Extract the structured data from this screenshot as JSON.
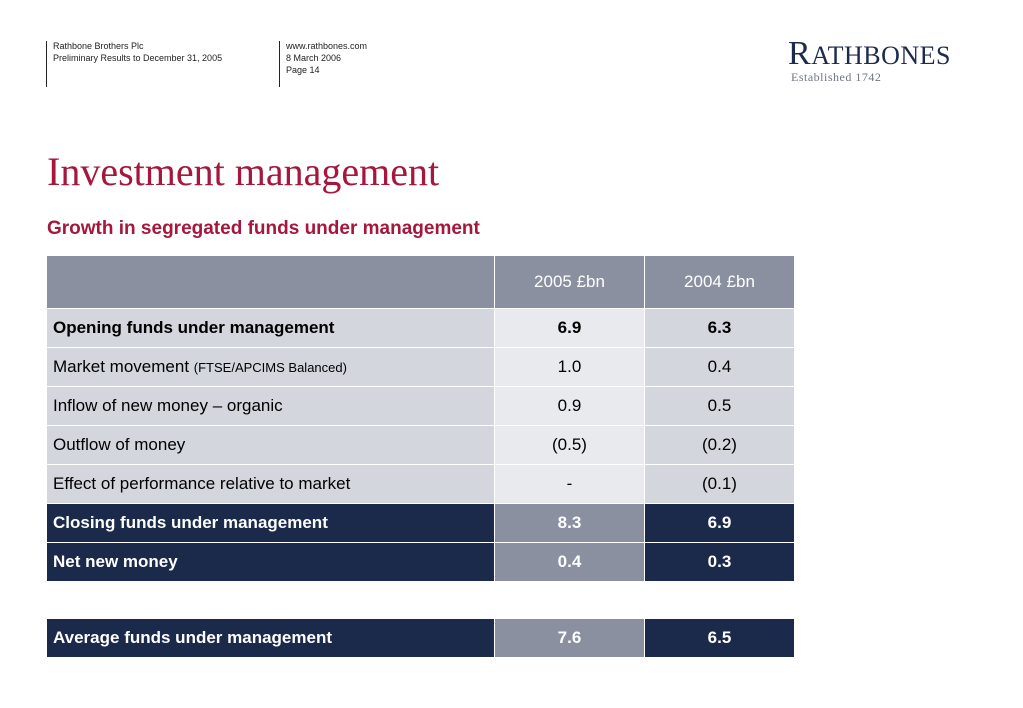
{
  "header": {
    "company": "Rathbone Brothers Plc",
    "document": "Preliminary Results to December 31, 2005",
    "website": "www.rathbones.com",
    "date": "8 March 2006",
    "page": "Page 14"
  },
  "logo": {
    "first_letter": "R",
    "rest": "ATHBONES",
    "tagline": "Established 1742"
  },
  "title": "Investment management",
  "subtitle": "Growth in segregated funds under management",
  "table": {
    "columns": [
      "",
      "2005 £bn",
      "2004 £bn"
    ],
    "rows": [
      {
        "label": "Opening funds under management",
        "note": "",
        "v2005": "6.9",
        "v2004": "6.3"
      },
      {
        "label": "Market movement",
        "note": "(FTSE/APCIMS  Balanced)",
        "v2005": "1.0",
        "v2004": "0.4"
      },
      {
        "label": "Inflow of new money – organic",
        "note": "",
        "v2005": "0.9",
        "v2004": "0.5"
      },
      {
        "label": "Outflow of money",
        "note": "",
        "v2005": "(0.5)",
        "v2004": "(0.2)"
      },
      {
        "label": "Effect of performance relative to market",
        "note": "",
        "v2005": "-",
        "v2004": "(0.1)"
      },
      {
        "label": "Closing funds under management",
        "note": "",
        "v2005": "8.3",
        "v2004": "6.9"
      },
      {
        "label": "Net new money",
        "note": "",
        "v2005": "0.4",
        "v2004": "0.3"
      }
    ]
  },
  "average": {
    "label": "Average funds under management",
    "v2005": "7.6",
    "v2004": "6.5"
  },
  "colors": {
    "accent": "#a5173c",
    "navy": "#1b294b",
    "header_grey": "#8a90a0",
    "row_grey": "#d3d6dc",
    "row_light": "#e9eaed"
  }
}
